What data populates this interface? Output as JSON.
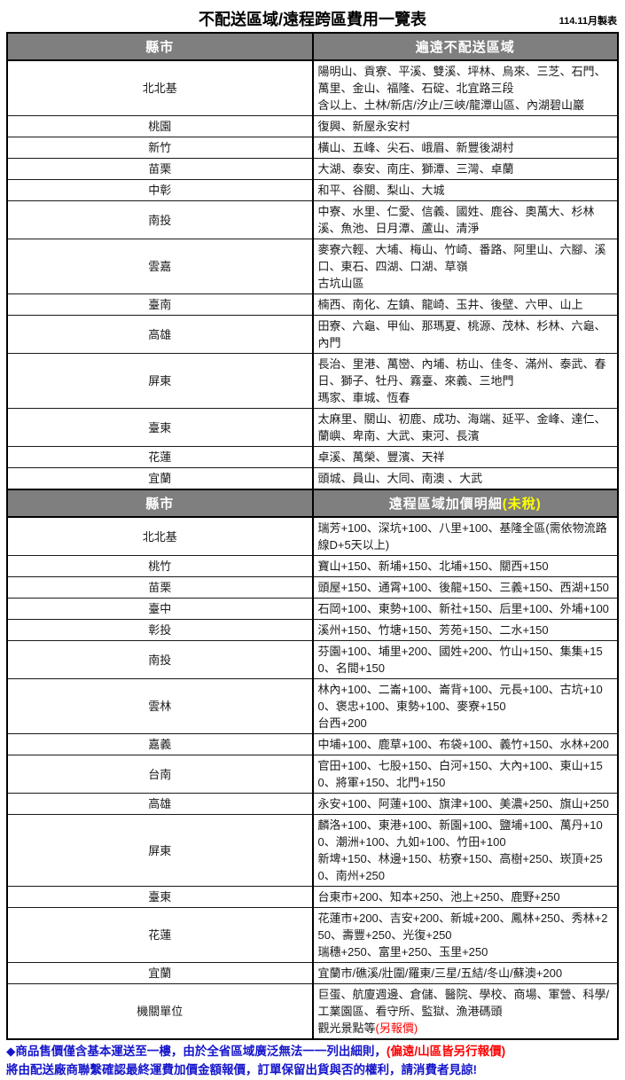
{
  "title": "不配送區域/遠程跨區費用一覽表",
  "date_note": "114.11月製表",
  "colors": {
    "header_bg": "#7f7f7f",
    "header_text": "#ffffff",
    "highlight_yellow": "#ffff00",
    "alert_red": "#ff0000",
    "footer_blue": "#1515cc"
  },
  "section1": {
    "header": {
      "col1": "縣市",
      "col2": "遍遠不配送區域"
    },
    "rows": [
      {
        "county": "北北基",
        "areas": "陽明山、貢寮、平溪、雙溪、坪林、烏來、三芝、石門、萬里、金山、福隆、石碇、北宜路三段\n含以上、土林/新店/汐止/三峽/龍潭山區、內湖碧山巖"
      },
      {
        "county": "桃園",
        "areas": "復興、新屋永安村"
      },
      {
        "county": "新竹",
        "areas": "橫山、五峰、尖石、峨眉、新豐後湖村"
      },
      {
        "county": "苗栗",
        "areas": "大湖、泰安、南庄、獅潭、三灣、卓蘭"
      },
      {
        "county": "中彰",
        "areas": "和平、谷關、梨山、大城"
      },
      {
        "county": "南投",
        "areas": "中寮、水里、仁愛、信義、國姓、鹿谷、奧萬大、杉林溪、魚池、日月潭、蘆山、清淨"
      },
      {
        "county": "雲嘉",
        "areas": "麥寮六輕、大埔、梅山、竹崎、番路、阿里山、六腳、溪口、東石、四湖、口湖、草嶺\n古坑山區"
      },
      {
        "county": "臺南",
        "areas": "楠西、南化、左鎮、龍崎、玉井、後壁、六甲、山上"
      },
      {
        "county": "高雄",
        "areas": "田寮、六龜、甲仙、那瑪夏、桃源、茂林、杉林、六龜、內門"
      },
      {
        "county": "屏東",
        "areas": "長治、里港、萬巒、內埔、枋山、佳冬、滿州、泰武、春日、獅子、牡丹、霧臺、來義、三地門\n瑪家、車城、恆春"
      },
      {
        "county": "臺東",
        "areas": "太麻里、關山、初鹿、成功、海端、延平、金峰、達仁、蘭嶼、卑南、大武、東河、長濱"
      },
      {
        "county": "花蓮",
        "areas": "卓溪、萬榮、豐濱、天祥"
      },
      {
        "county": "宜蘭",
        "areas": "頭城、員山、大同、南澳 、大武"
      }
    ]
  },
  "section2": {
    "header": {
      "col1": "縣市",
      "col2_main": "遠程區域加價明細",
      "col2_highlight": "(未稅)"
    },
    "rows": [
      {
        "county": "北北基",
        "areas": "瑞芳+100、深坑+100、八里+100、基隆全區(需依物流路線D+5天以上)"
      },
      {
        "county": "桃竹",
        "areas": "寶山+150、新埔+150、北埔+150、關西+150"
      },
      {
        "county": "苗栗",
        "areas": "頭屋+150、通霄+100、後龍+150、三義+150、西湖+150"
      },
      {
        "county": "臺中",
        "areas": "石岡+100、東勢+100、新社+150、后里+100、外埔+100"
      },
      {
        "county": "彰投",
        "areas": "溪州+150、竹塘+150、芳苑+150、二水+150"
      },
      {
        "county": "南投",
        "areas": "芬園+100、埔里+200、國姓+200、竹山+150、集集+150、名間+150"
      },
      {
        "county": "雲林",
        "areas": "林內+100、二崙+100、崙背+100、元長+100、古坑+100、褒忠+100、東勢+100、麥寮+150\n台西+200"
      },
      {
        "county": "嘉義",
        "areas": "中埔+100、鹿草+100、布袋+100、義竹+150、水林+200"
      },
      {
        "county": "台南",
        "areas": "官田+100、七股+150、白河+150、大內+100、東山+150、將軍+150、北門+150"
      },
      {
        "county": "高雄",
        "areas": "永安+100、阿蓮+100、旗津+100、美濃+250、旗山+250"
      },
      {
        "county": "屏東",
        "areas": "麟洛+100、東港+100、新園+100、鹽埔+100、萬丹+100、潮洲+100、九如+100、竹田+100\n新埤+150、林邊+150、枋寮+150、高樹+250、崁頂+250、南州+250"
      },
      {
        "county": "臺東",
        "areas": "台東市+200、知本+250、池上+250、鹿野+250"
      },
      {
        "county": "花蓮",
        "areas": "花蓮市+200、吉安+200、新城+200、鳳林+250、秀林+250、壽豐+250、光復+250\n瑞穗+250、富里+250、玉里+250"
      },
      {
        "county": "宜蘭",
        "areas": "宜蘭市/礁溪/壯圍/羅東/三星/五結/冬山/蘇澳+200"
      },
      {
        "county": "機關單位",
        "areas": "巨蛋、航廈週邊、倉儲、醫院、學校、商場、軍營、科學/工業園區、看守所、監獄、漁港碼頭\n觀光景點等",
        "areas_red": "(另報價)"
      }
    ]
  },
  "footer": {
    "line1_blue": "◆商品售價僅含基本運送至一樓，由於全省區域廣泛無法一一列出細則，",
    "line1_red": "(偏遠/山區皆另行報價)",
    "line2_blue": "將由配送廠商聯繫確認最終運費加價金額報價，訂單保留出貨與否的權利，請消費者見諒!"
  }
}
